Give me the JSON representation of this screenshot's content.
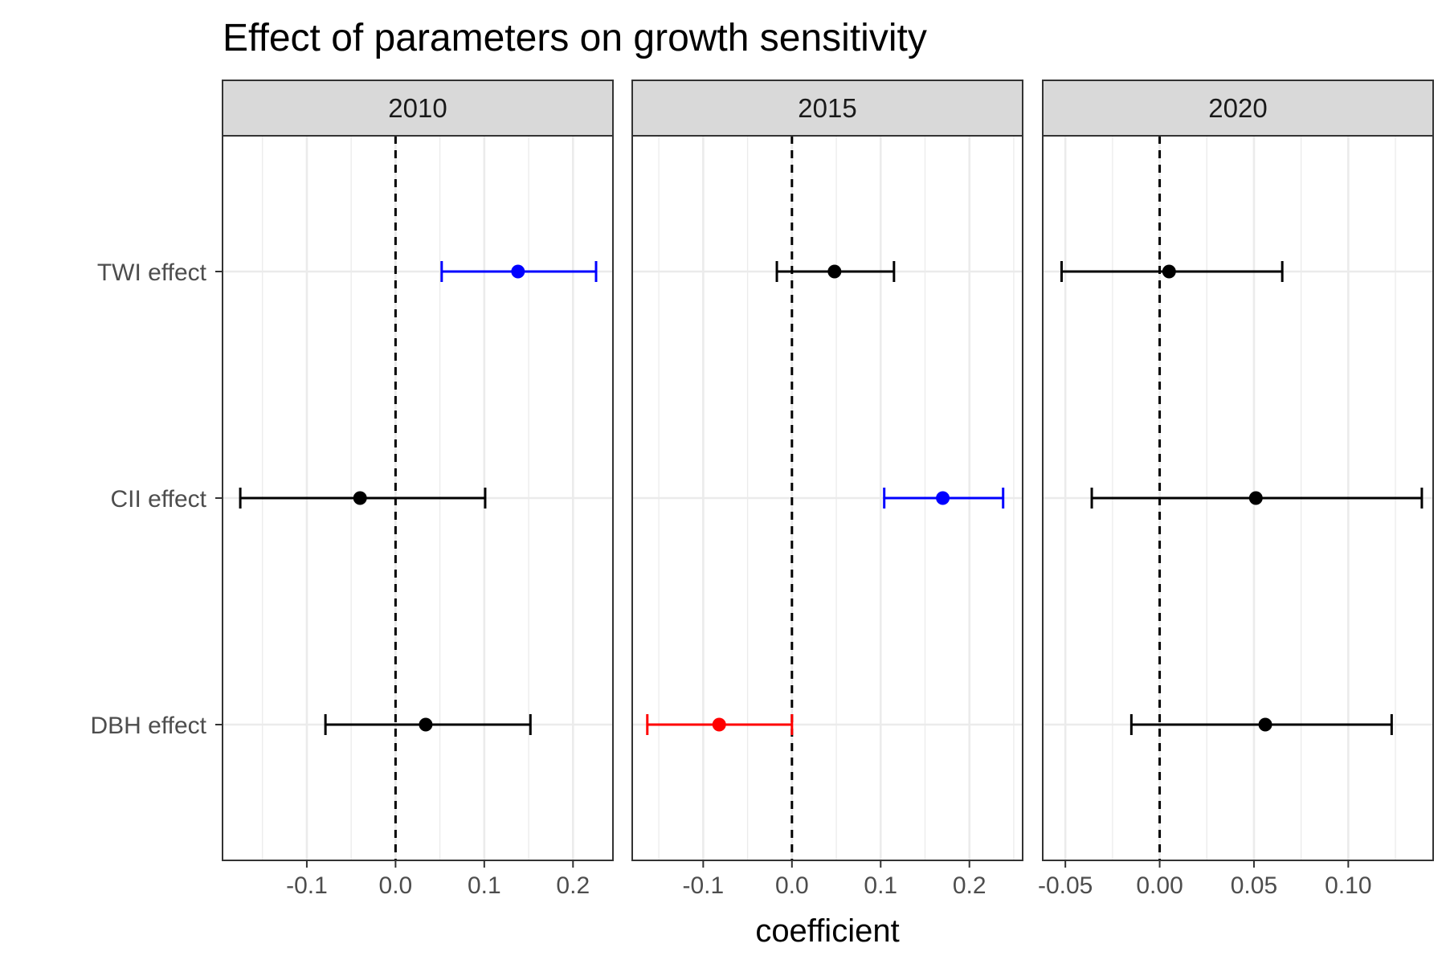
{
  "chart_data": {
    "type": "scatter",
    "title": "Effect of parameters on growth sensitivity",
    "xlabel": "coefficient",
    "ylabel": "",
    "categories": [
      "TWI effect",
      "CII effect",
      "DBH effect"
    ],
    "grid": true,
    "colors": {
      "negative": "#ff0000",
      "neutral": "#000000",
      "positive": "#0000ff",
      "strip_fill": "#d9d9d9",
      "grid": "#ebebeb",
      "frame": "#333333"
    },
    "facets": [
      {
        "label": "2010",
        "xlim": [
          -0.195,
          0.245
        ],
        "xticks": [
          -0.1,
          0.0,
          0.1,
          0.2
        ],
        "xtick_labels": [
          "-0.1",
          "0.0",
          "0.1",
          "0.2"
        ],
        "points": [
          {
            "parameter": "TWI effect",
            "estimate": 0.138,
            "lower": 0.052,
            "upper": 0.226,
            "color": "#0000ff"
          },
          {
            "parameter": "CII effect",
            "estimate": -0.04,
            "lower": -0.175,
            "upper": 0.101,
            "color": "#000000"
          },
          {
            "parameter": "DBH effect",
            "estimate": 0.034,
            "lower": -0.079,
            "upper": 0.152,
            "color": "#000000"
          }
        ]
      },
      {
        "label": "2015",
        "xlim": [
          -0.18,
          0.26
        ],
        "xticks": [
          -0.1,
          0.0,
          0.1,
          0.2
        ],
        "xtick_labels": [
          "-0.1",
          "0.0",
          "0.1",
          "0.2"
        ],
        "points": [
          {
            "parameter": "TWI effect",
            "estimate": 0.048,
            "lower": -0.017,
            "upper": 0.115,
            "color": "#000000"
          },
          {
            "parameter": "CII effect",
            "estimate": 0.17,
            "lower": 0.104,
            "upper": 0.238,
            "color": "#0000ff"
          },
          {
            "parameter": "DBH effect",
            "estimate": -0.082,
            "lower": -0.163,
            "upper": 0.0,
            "color": "#ff0000"
          }
        ]
      },
      {
        "label": "2020",
        "xlim": [
          -0.062,
          0.145
        ],
        "xticks": [
          -0.05,
          0.0,
          0.05,
          0.1
        ],
        "xtick_labels": [
          "-0.05",
          "0.00",
          "0.05",
          "0.10"
        ],
        "points": [
          {
            "parameter": "TWI effect",
            "estimate": 0.005,
            "lower": -0.052,
            "upper": 0.065,
            "color": "#000000"
          },
          {
            "parameter": "CII effect",
            "estimate": 0.051,
            "lower": -0.036,
            "upper": 0.139,
            "color": "#000000"
          },
          {
            "parameter": "DBH effect",
            "estimate": 0.056,
            "lower": -0.015,
            "upper": 0.123,
            "color": "#000000"
          }
        ]
      }
    ]
  }
}
